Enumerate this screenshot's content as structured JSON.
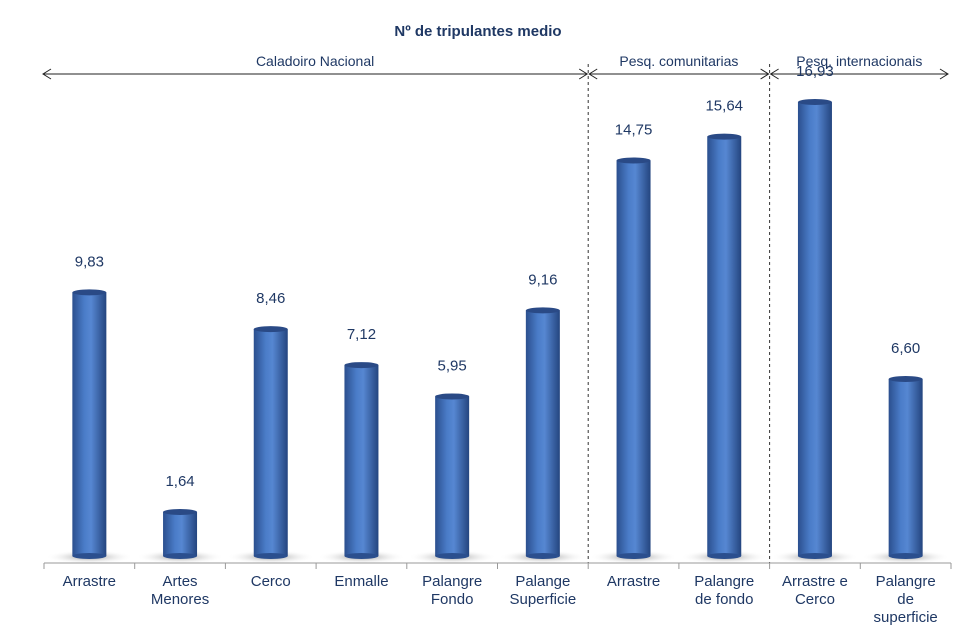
{
  "chart_data": {
    "type": "bar",
    "title": "Nº de tripulantes medio",
    "xlabel": "",
    "ylabel": "",
    "ylim": [
      0,
      18
    ],
    "grid": false,
    "legend": "none",
    "bar_color": "#4472c4",
    "groups": [
      {
        "name": "Caladoiro Nacional",
        "start": 0,
        "end": 5
      },
      {
        "name": "Pesq. comunitarias",
        "start": 6,
        "end": 7
      },
      {
        "name": "Pesq. internacionais",
        "start": 8,
        "end": 9
      }
    ],
    "categories": [
      [
        "Arrastre"
      ],
      [
        "Artes",
        "Menores"
      ],
      [
        "Cerco"
      ],
      [
        "Enmalle"
      ],
      [
        "Palangre",
        "Fondo"
      ],
      [
        "Palange",
        "Superficie"
      ],
      [
        "Arrastre"
      ],
      [
        "Palangre",
        "de fondo"
      ],
      [
        "Arrastre e",
        "Cerco"
      ],
      [
        "Palangre",
        "de",
        "superficie"
      ]
    ],
    "values": [
      9.83,
      1.64,
      8.46,
      7.12,
      5.95,
      9.16,
      14.75,
      15.64,
      16.93,
      6.6
    ],
    "value_labels": [
      "9,83",
      "1,64",
      "8,46",
      "7,12",
      "5,95",
      "9,16",
      "14,75",
      "15,64",
      "16,93",
      "6,60"
    ]
  }
}
